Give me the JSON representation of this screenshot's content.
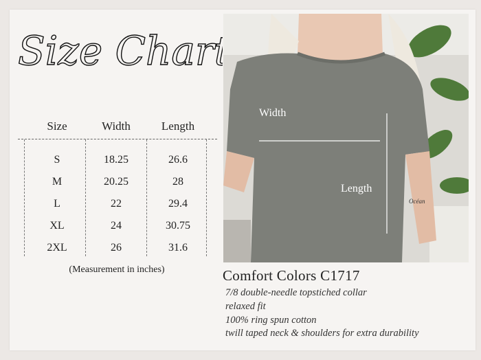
{
  "title": "Size Chart",
  "table": {
    "headers": [
      "Size",
      "Width",
      "Length"
    ],
    "rows": [
      [
        "S",
        "18.25",
        "26.6"
      ],
      [
        "M",
        "20.25",
        "28"
      ],
      [
        "L",
        "22",
        "29.4"
      ],
      [
        "XL",
        "24",
        "30.75"
      ],
      [
        "2XL",
        "26",
        "31.6"
      ]
    ],
    "note": "(Measurement in inches)"
  },
  "photo": {
    "width_label": "Width",
    "length_label": "Length",
    "tattoo_text": "Océan"
  },
  "product": {
    "name": "Comfort Colors C1717",
    "features": [
      "7/8 double-needle topstiched collar",
      "relaxed fit",
      "100% ring spun cotton",
      "twill taped neck & shoulders for extra durability"
    ]
  },
  "colors": {
    "shirt": "#7d7f79",
    "background": "#f6f4f2",
    "text": "#222222"
  }
}
